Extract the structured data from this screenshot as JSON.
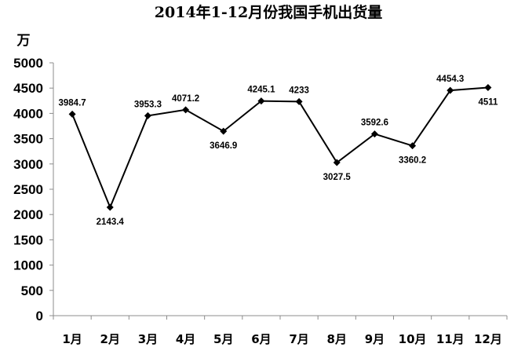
{
  "chart_data": {
    "type": "line",
    "title": "2014年1-12月份我国手机出货量",
    "ylabel": "万",
    "xlabel": "",
    "categories": [
      "1月",
      "2月",
      "3月",
      "4月",
      "5月",
      "6月",
      "7月",
      "8月",
      "9月",
      "10月",
      "11月",
      "12月"
    ],
    "series": [
      {
        "values": [
          3984.7,
          2143.4,
          3953.3,
          4071.2,
          3646.9,
          4245.1,
          4233,
          3027.5,
          3592.6,
          3360.2,
          4454.3,
          4511
        ]
      }
    ],
    "data_labels": [
      "3984.7",
      "2143.4",
      "3953.3",
      "4071.2",
      "3646.9",
      "4245.1",
      "4233",
      "3027.5",
      "3592.6",
      "3360.2",
      "4454.3",
      "4511"
    ],
    "ylim": [
      0,
      5000
    ],
    "yticks": [
      0,
      500,
      1000,
      1500,
      2000,
      2500,
      3000,
      3500,
      4000,
      4500,
      5000
    ],
    "grid": false,
    "legend": "none",
    "line_color": "#000000",
    "marker": "diamond"
  }
}
